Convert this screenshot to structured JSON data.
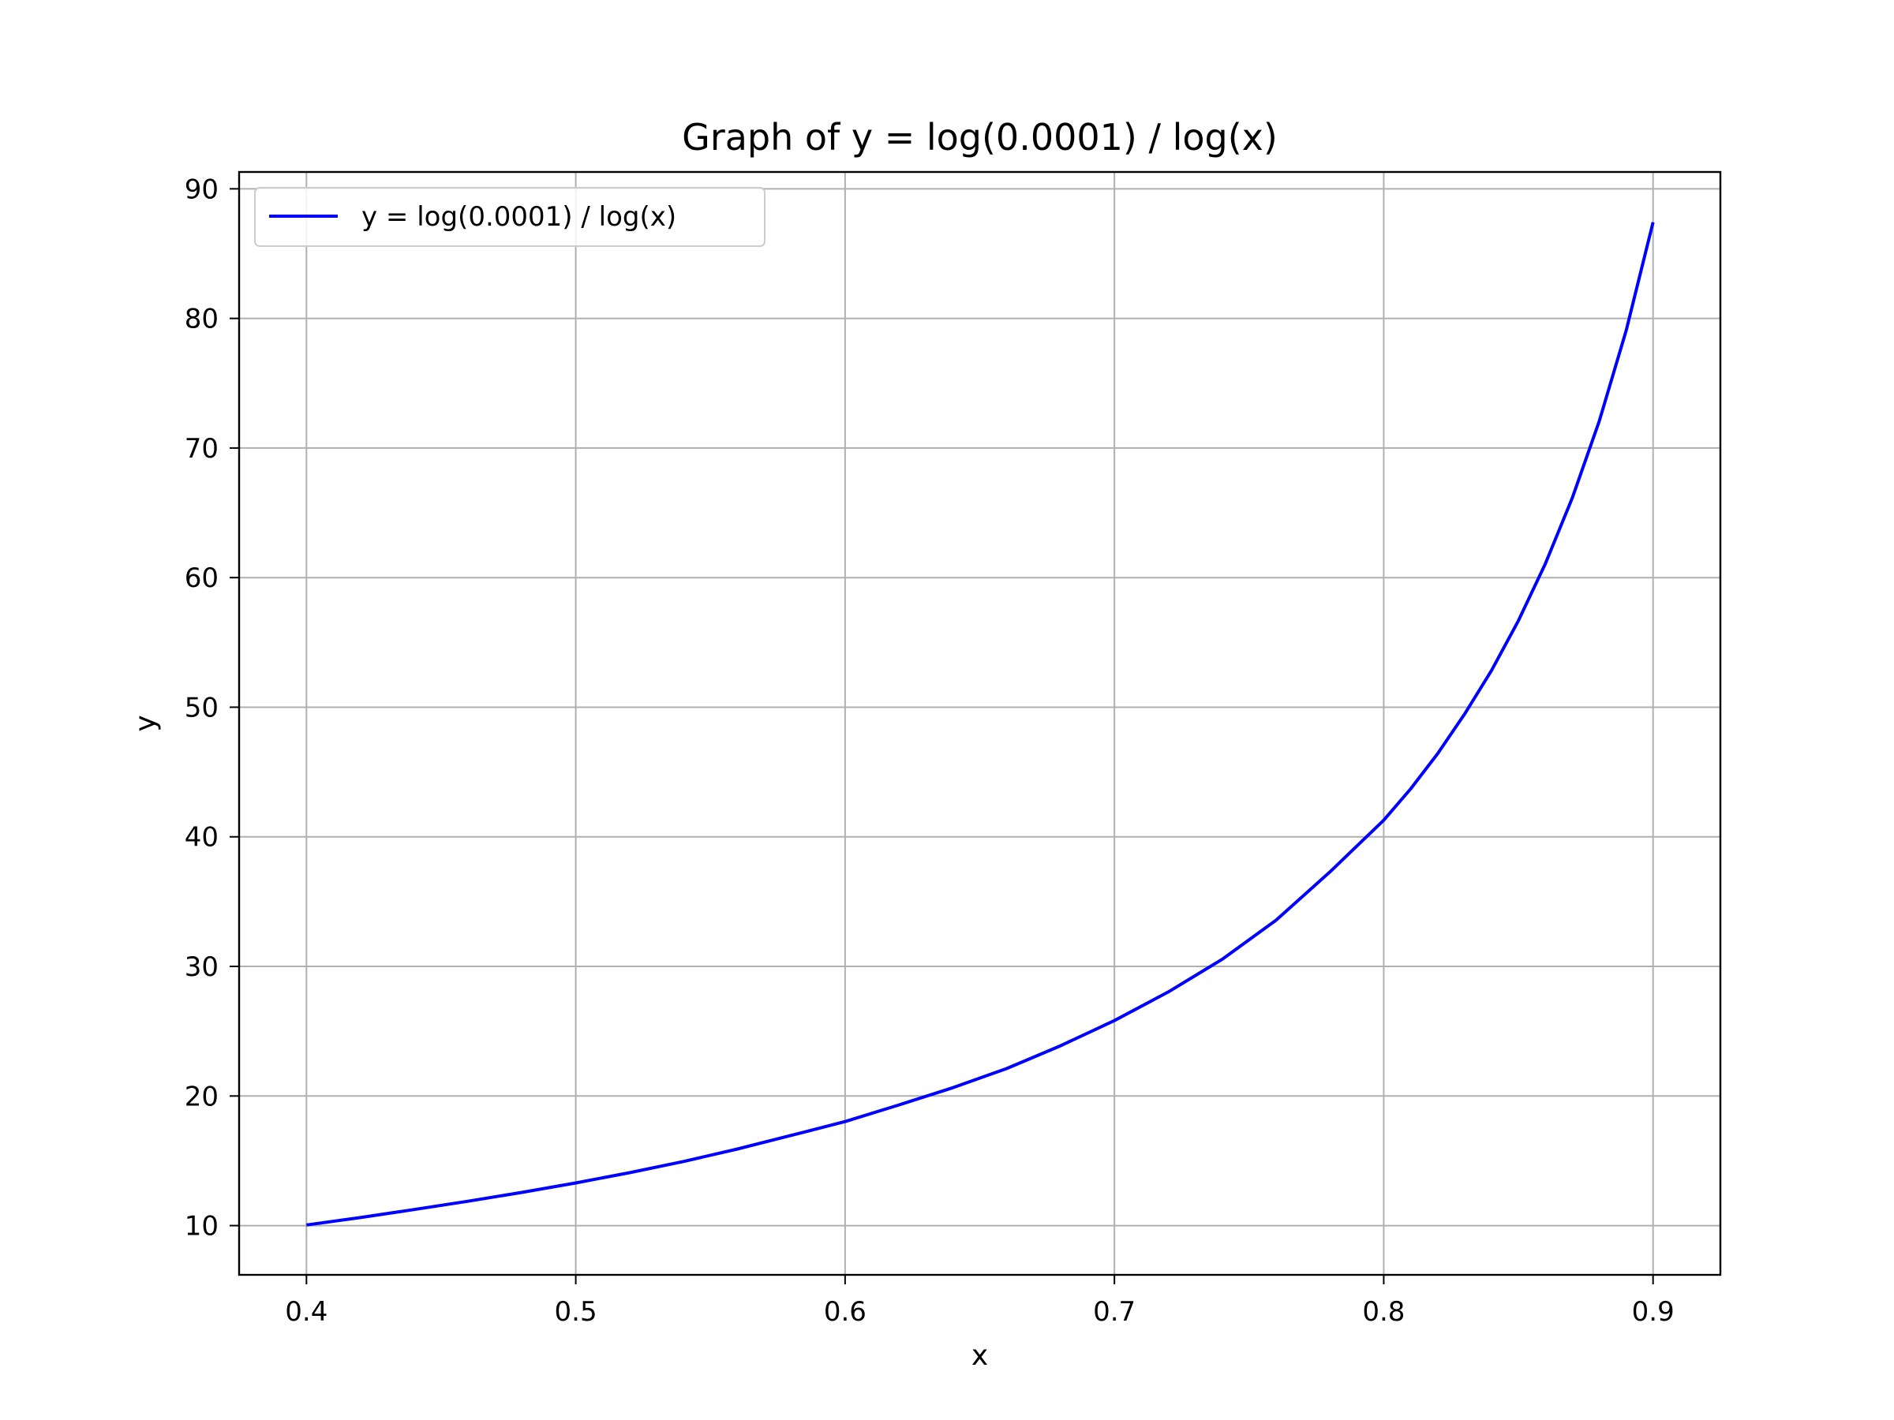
{
  "chart_data": {
    "type": "line",
    "title": "Graph of y = log(0.0001) / log(x)",
    "xlabel": "x",
    "ylabel": "y",
    "xlim": [
      0.375,
      0.925
    ],
    "ylim": [
      6.2,
      91.3
    ],
    "x_ticks": [
      0.4,
      0.5,
      0.6,
      0.7,
      0.8,
      0.9
    ],
    "x_tick_labels": [
      "0.4",
      "0.5",
      "0.6",
      "0.7",
      "0.8",
      "0.9"
    ],
    "y_ticks": [
      10,
      20,
      30,
      40,
      50,
      60,
      70,
      80,
      90
    ],
    "y_tick_labels": [
      "10",
      "20",
      "30",
      "40",
      "50",
      "60",
      "70",
      "80",
      "90"
    ],
    "grid": true,
    "legend": {
      "position": "upper-left"
    },
    "series": [
      {
        "name": "y = log(0.0001) / log(x)",
        "color": "#0000ff",
        "x": [
          0.4,
          0.42,
          0.44,
          0.46,
          0.48,
          0.5,
          0.52,
          0.54,
          0.56,
          0.58,
          0.6,
          0.62,
          0.64,
          0.66,
          0.68,
          0.7,
          0.72,
          0.74,
          0.76,
          0.78,
          0.8,
          0.81,
          0.82,
          0.83,
          0.84,
          0.85,
          0.86,
          0.87,
          0.88,
          0.89,
          0.9
        ],
        "y": [
          10.05,
          10.62,
          11.24,
          11.88,
          12.56,
          13.29,
          14.08,
          14.95,
          15.91,
          16.96,
          18.03,
          19.31,
          20.64,
          22.12,
          23.88,
          25.82,
          28.03,
          30.54,
          33.56,
          37.29,
          41.28,
          43.7,
          46.41,
          49.46,
          52.82,
          56.67,
          61.07,
          66.14,
          72.05,
          79.06,
          87.42
        ]
      }
    ]
  }
}
